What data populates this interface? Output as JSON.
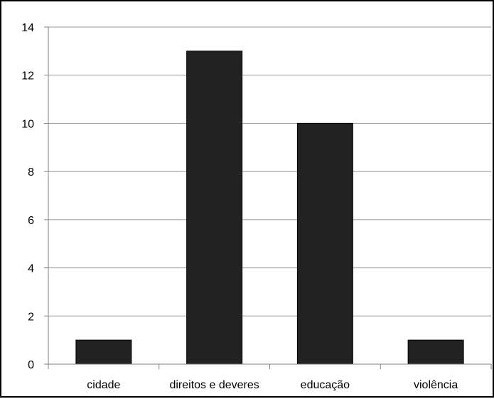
{
  "chart_data": {
    "type": "bar",
    "title": "",
    "xlabel": "",
    "ylabel": "",
    "categories": [
      "cidade",
      "direitos e deveres",
      "educação",
      "violência"
    ],
    "values": [
      1,
      13,
      10,
      1
    ],
    "ylim": [
      0,
      14
    ],
    "yticks": [
      0,
      2,
      4,
      6,
      8,
      10,
      12,
      14
    ],
    "grid": true,
    "legend": "none",
    "colors": {
      "bar": "#222222",
      "bar_edge": "#000000",
      "grid": "#999999",
      "axis": "#808080",
      "frame": "#000000"
    }
  }
}
